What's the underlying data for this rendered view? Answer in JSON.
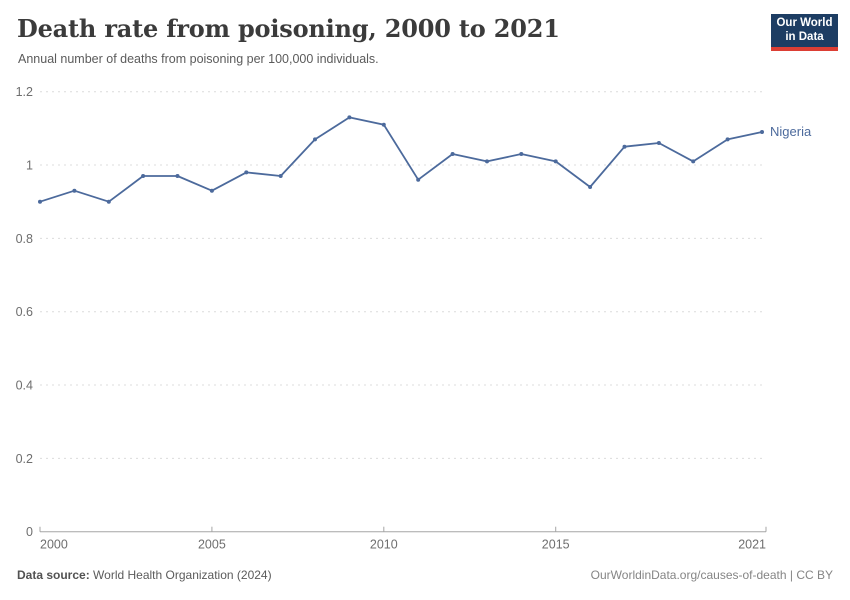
{
  "header": {
    "title": "Death rate from poisoning, 2000 to 2021",
    "subtitle": "Annual number of deaths from poisoning per 100,000 individuals.",
    "logo": {
      "line1": "Our World",
      "line2": "in Data"
    }
  },
  "chart_data": {
    "type": "line",
    "title": "Death rate from poisoning, 2000 to 2021",
    "subtitle": "Annual number of deaths from poisoning per 100,000 individuals.",
    "x": [
      2000,
      2001,
      2002,
      2003,
      2004,
      2005,
      2006,
      2007,
      2008,
      2009,
      2010,
      2011,
      2012,
      2013,
      2014,
      2015,
      2016,
      2017,
      2018,
      2019,
      2020,
      2021
    ],
    "series": [
      {
        "name": "Nigeria",
        "color": "#4C6A9C",
        "values": [
          0.9,
          0.93,
          0.9,
          0.97,
          0.97,
          0.93,
          0.98,
          0.97,
          1.07,
          1.13,
          1.11,
          0.96,
          1.03,
          1.01,
          1.03,
          1.01,
          0.94,
          1.05,
          1.06,
          1.01,
          1.07,
          1.09
        ]
      }
    ],
    "xlabel": "",
    "ylabel": "",
    "ylim": [
      0,
      1.2
    ],
    "yticks": [
      0,
      0.2,
      0.4,
      0.6,
      0.8,
      1,
      1.2
    ],
    "ytick_labels": [
      "0",
      "0.2",
      "0.4",
      "0.6",
      "0.8",
      "1",
      "1.2"
    ],
    "xticks": [
      2000,
      2005,
      2010,
      2015,
      2021
    ],
    "xtick_labels": [
      "2000",
      "2005",
      "2010",
      "2015",
      "2021"
    ],
    "grid": "horizontal-dashed",
    "legend_position": "end-of-line-label"
  },
  "footer": {
    "datasource_label": "Data source:",
    "datasource_value": "World Health Organization (2024)",
    "credit": "OurWorldinData.org/causes-of-death | CC BY"
  },
  "colors": {
    "line": "#4C6A9C",
    "gridline": "#dcdcdc",
    "axis": "#a5a5a5",
    "tick_label": "#6e6e6e",
    "title_text": "#3b3b3b",
    "logo_bg": "#1d3d63",
    "logo_stripe": "#dc3e34"
  }
}
